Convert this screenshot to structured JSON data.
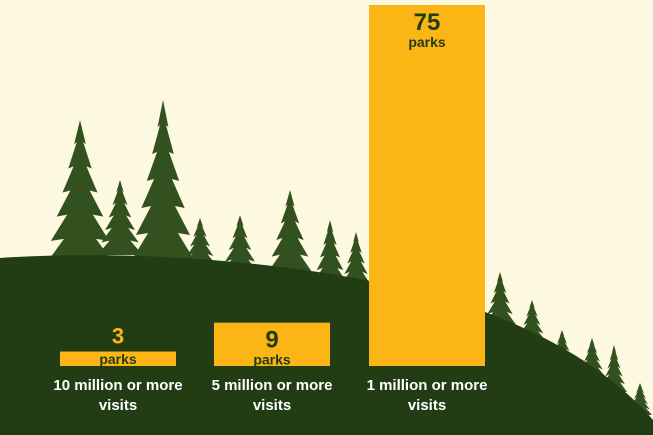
{
  "chart_data": {
    "type": "bar",
    "categories": [
      "10 million or more visits",
      "5 million or more visits",
      "1 million or more visits"
    ],
    "values": [
      3,
      9,
      75
    ],
    "unit_label": "parks",
    "color": "#fbb615",
    "ylim": [
      0,
      75
    ]
  }
}
